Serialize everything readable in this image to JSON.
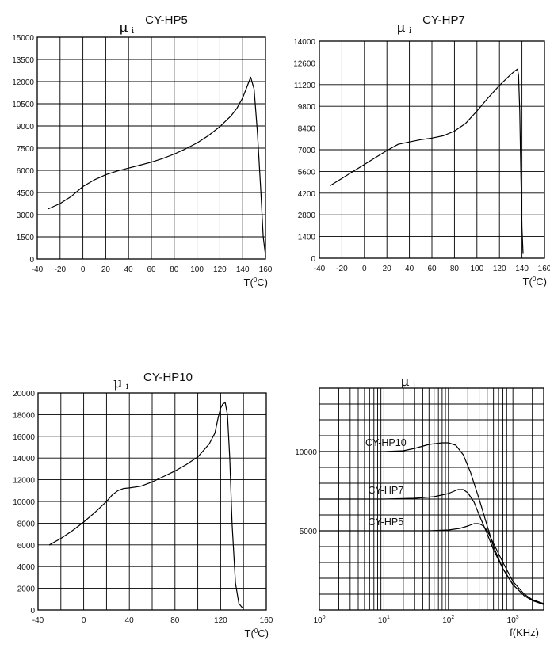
{
  "chart_data": [
    {
      "type": "line",
      "title": "CY-HP5",
      "ylabel_symbol": "μ",
      "ylabel_sub": "i",
      "xlabel": "T(°C)",
      "xlabel_main": "T(",
      "xlabel_deg": "0",
      "xlabel_tail": "C)",
      "xlim": [
        -40,
        160
      ],
      "ylim": [
        0,
        15000
      ],
      "xticks": [
        -40,
        -20,
        0,
        20,
        40,
        60,
        80,
        100,
        120,
        140,
        160
      ],
      "yticks": [
        0,
        1500,
        3000,
        4500,
        6000,
        7500,
        9000,
        10500,
        12000,
        13500,
        15000
      ],
      "grid": true,
      "series": [
        {
          "x": [
            -30,
            -20,
            -10,
            0,
            10,
            20,
            30,
            40,
            50,
            60,
            70,
            80,
            90,
            100,
            110,
            120,
            130,
            135,
            140,
            144,
            147,
            150,
            153,
            156,
            158,
            160
          ],
          "y": [
            3400,
            3750,
            4250,
            4900,
            5350,
            5700,
            5950,
            6150,
            6350,
            6550,
            6800,
            7100,
            7450,
            7850,
            8350,
            8950,
            9700,
            10200,
            10900,
            11700,
            12300,
            11500,
            8500,
            4500,
            1500,
            250
          ]
        }
      ]
    },
    {
      "type": "line",
      "title": "CY-HP7",
      "ylabel_symbol": "μ",
      "ylabel_sub": "i",
      "xlabel": "T(°C)",
      "xlabel_main": "T(",
      "xlabel_deg": "0",
      "xlabel_tail": "C)",
      "xlim": [
        -40,
        160
      ],
      "ylim": [
        0,
        14000
      ],
      "xticks": [
        -40,
        -20,
        0,
        20,
        40,
        60,
        80,
        100,
        120,
        140,
        160
      ],
      "yticks": [
        0,
        1400,
        2800,
        4200,
        5600,
        7000,
        8400,
        9800,
        11200,
        12600,
        14000
      ],
      "grid": true,
      "series": [
        {
          "x": [
            -30,
            -20,
            -10,
            0,
            10,
            20,
            30,
            40,
            50,
            60,
            70,
            80,
            90,
            100,
            110,
            120,
            130,
            134,
            136,
            137,
            138,
            139,
            140,
            141
          ],
          "y": [
            4700,
            5150,
            5600,
            6050,
            6500,
            6950,
            7350,
            7500,
            7650,
            7750,
            7900,
            8200,
            8700,
            9500,
            10350,
            11150,
            11850,
            12100,
            12200,
            11800,
            9500,
            5500,
            2000,
            300
          ]
        }
      ]
    },
    {
      "type": "line",
      "title": "CY-HP10",
      "ylabel_symbol": "μ",
      "ylabel_sub": "i",
      "xlabel": "T(°C)",
      "xlabel_main": "T(",
      "xlabel_deg": "0",
      "xlabel_tail": "C)",
      "xlim": [
        -40,
        160
      ],
      "ylim": [
        0,
        20000
      ],
      "xticks": [
        -40,
        0,
        40,
        80,
        120,
        160
      ],
      "yticks": [
        0,
        2000,
        4000,
        6000,
        8000,
        10000,
        12000,
        14000,
        16000,
        18000,
        20000
      ],
      "grid": true,
      "series": [
        {
          "x": [
            -30,
            -20,
            -10,
            0,
            10,
            20,
            25,
            30,
            35,
            40,
            50,
            60,
            70,
            80,
            90,
            100,
            110,
            115,
            118,
            120,
            122,
            124,
            126,
            128,
            130,
            133,
            136,
            139
          ],
          "y": [
            6000,
            6600,
            7300,
            8100,
            9000,
            10000,
            10600,
            11000,
            11200,
            11250,
            11400,
            11800,
            12300,
            12800,
            13400,
            14100,
            15300,
            16300,
            17800,
            18600,
            19000,
            19100,
            18000,
            14000,
            8000,
            2500,
            600,
            200
          ]
        }
      ]
    },
    {
      "type": "line",
      "title": "",
      "ylabel_symbol": "μ",
      "ylabel_sub": "i",
      "xlabel": "f(KHz)",
      "xscale": "log",
      "xlim": [
        1,
        3000
      ],
      "ylim": [
        0,
        14000
      ],
      "xticks": [
        1,
        10,
        100,
        1000
      ],
      "xtick_labels": [
        {
          "base": "10",
          "exp": "0"
        },
        {
          "base": "10",
          "exp": "1"
        },
        {
          "base": "10",
          "exp": "2"
        },
        {
          "base": "10",
          "exp": "3"
        }
      ],
      "yticks": [
        5000,
        10000
      ],
      "grid": true,
      "series": [
        {
          "name": "CY-HP10",
          "x": [
            1,
            10,
            20,
            30,
            50,
            80,
            100,
            130,
            170,
            220,
            300,
            400,
            500,
            700,
            1000,
            1500,
            2000,
            3000
          ],
          "y": [
            10000,
            10000,
            10050,
            10200,
            10450,
            10550,
            10550,
            10400,
            9800,
            8700,
            7000,
            5300,
            4000,
            2600,
            1600,
            900,
            600,
            350
          ]
        },
        {
          "name": "CY-HP7",
          "x": [
            1,
            10,
            30,
            60,
            100,
            140,
            170,
            200,
            250,
            300,
            400,
            500,
            700,
            1000,
            1500,
            2000,
            3000
          ],
          "y": [
            7000,
            7000,
            7050,
            7150,
            7350,
            7600,
            7600,
            7400,
            6800,
            6000,
            4800,
            3800,
            2600,
            1600,
            900,
            600,
            350
          ]
        },
        {
          "name": "CY-HP5",
          "x": [
            1,
            10,
            50,
            100,
            150,
            200,
            250,
            300,
            350,
            400,
            500,
            700,
            1000,
            1500,
            2000,
            3000
          ],
          "y": [
            5000,
            5000,
            5000,
            5050,
            5150,
            5300,
            5450,
            5450,
            5300,
            5000,
            4200,
            3000,
            1800,
            1000,
            650,
            400
          ]
        }
      ]
    }
  ]
}
